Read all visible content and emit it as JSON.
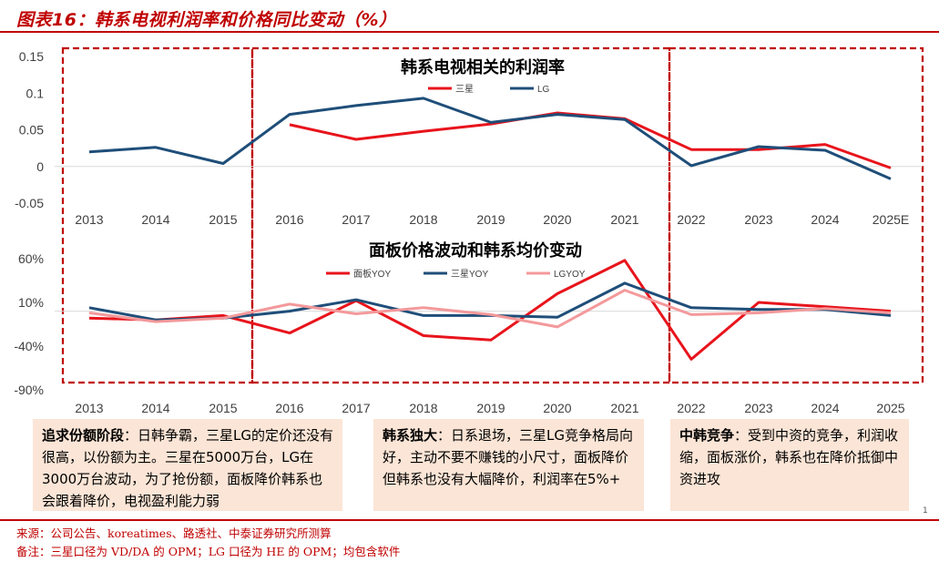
{
  "title": "图表16：韩系电视利润率和价格同比变动（%）",
  "colors": {
    "accent": "#c00000",
    "samsung": "#e8141c",
    "lg": "#1f4e79",
    "lg_yoy": "#f4999b",
    "box_bg": "#fbe5d6",
    "grid": "#d9d9d9"
  },
  "chart_data": [
    {
      "type": "line",
      "title": "韩系电视相关的利润率",
      "categories": [
        "2013",
        "2014",
        "2015",
        "2016",
        "2017",
        "2018",
        "2019",
        "2020",
        "2021",
        "2022",
        "2023",
        "2024",
        "2025E"
      ],
      "yticks": [
        "0.15",
        "0.1",
        "0.05",
        "0",
        "-0.05"
      ],
      "ylim": [
        -0.05,
        0.15
      ],
      "series": [
        {
          "name": "三星",
          "color": "#e8141c",
          "values": [
            null,
            null,
            null,
            0.057,
            0.037,
            0.048,
            0.058,
            0.073,
            0.065,
            0.023,
            0.023,
            0.03,
            -0.002
          ]
        },
        {
          "name": "LG",
          "color": "#1f4e79",
          "values": [
            0.02,
            0.026,
            0.004,
            0.071,
            0.083,
            0.093,
            0.06,
            0.071,
            0.064,
            0.001,
            0.027,
            0.022,
            -0.017
          ]
        }
      ]
    },
    {
      "type": "line",
      "title": "面板价格波动和韩系均价变动",
      "categories": [
        "2013",
        "2014",
        "2015",
        "2016",
        "2017",
        "2018",
        "2019",
        "2020",
        "2021",
        "2022",
        "2023",
        "2024",
        "2025"
      ],
      "yticks": [
        "60%",
        "10%",
        "-40%",
        "-90%"
      ],
      "ylim": [
        -90,
        60
      ],
      "series": [
        {
          "name": "面板YOY",
          "color": "#e8141c",
          "values": [
            -8,
            -10,
            -5,
            -25,
            12,
            -28,
            -33,
            20,
            58,
            -55,
            10,
            5,
            0
          ]
        },
        {
          "name": "三星YOY",
          "color": "#1f4e79",
          "values": [
            4,
            -10,
            -8,
            0,
            13,
            -5,
            -5,
            -7,
            32,
            4,
            2,
            2,
            -5
          ]
        },
        {
          "name": "LGYOY",
          "color": "#f4999b",
          "values": [
            -2,
            -12,
            -8,
            8,
            -3,
            4,
            -4,
            -18,
            24,
            -4,
            -2,
            3,
            -2
          ]
        }
      ]
    }
  ],
  "boxes": [
    {
      "heading": "追求份额阶段",
      "text": "：日韩争霸，三星LG的定价还没有很高，以份额为主。三星在5000万台，LG在3000万台波动，为了抢份额，面板降价韩系也会跟着降价，电视盈利能力弱"
    },
    {
      "heading": "韩系独大",
      "text": "：日系退场，三星LG竞争格局向好，主动不要不赚钱的小尺寸，面板降价但韩系也没有大幅降价，利润率在5%+"
    },
    {
      "heading": "中韩竞争",
      "text": "：受到中资的竞争，利润收缩，面板涨价，韩系也在降价抵御中资进攻"
    }
  ],
  "source": "来源：公司公告、koreatimes、路透社、中泰证券研究所测算",
  "remark": "备注：三星口径为 VD/DA 的 OPM；LG 口径为 HE 的 OPM；均包含软件",
  "page_mark": "1"
}
